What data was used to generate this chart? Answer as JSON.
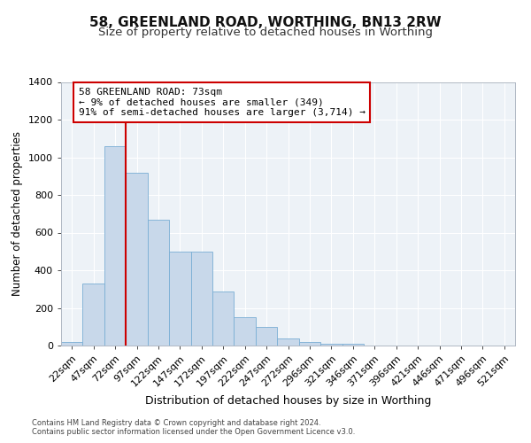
{
  "title": "58, GREENLAND ROAD, WORTHING, BN13 2RW",
  "subtitle": "Size of property relative to detached houses in Worthing",
  "xlabel": "Distribution of detached houses by size in Worthing",
  "ylabel": "Number of detached properties",
  "categories": [
    "22sqm",
    "47sqm",
    "72sqm",
    "97sqm",
    "122sqm",
    "147sqm",
    "172sqm",
    "197sqm",
    "222sqm",
    "247sqm",
    "272sqm",
    "296sqm",
    "321sqm",
    "346sqm",
    "371sqm",
    "396sqm",
    "421sqm",
    "446sqm",
    "471sqm",
    "496sqm",
    "521sqm"
  ],
  "bar_values": [
    20,
    330,
    1060,
    920,
    670,
    500,
    500,
    285,
    150,
    100,
    40,
    20,
    10,
    10,
    0,
    0,
    0,
    0,
    0,
    0,
    0
  ],
  "bar_color": "#c8d8ea",
  "bar_edge_color": "#7aaed4",
  "annotation_box_text": "58 GREENLAND ROAD: 73sqm\n← 9% of detached houses are smaller (349)\n91% of semi-detached houses are larger (3,714) →",
  "annotation_box_color": "#ffffff",
  "annotation_box_edge": "#cc0000",
  "vline_color": "#cc0000",
  "plot_bg_color": "#edf2f7",
  "ylim": [
    0,
    1400
  ],
  "yticks": [
    0,
    200,
    400,
    600,
    800,
    1000,
    1200,
    1400
  ],
  "vline_index": 2,
  "footer_text": "Contains HM Land Registry data © Crown copyright and database right 2024.\nContains public sector information licensed under the Open Government Licence v3.0.",
  "title_fontsize": 11,
  "subtitle_fontsize": 9.5,
  "xlabel_fontsize": 9,
  "ylabel_fontsize": 8.5,
  "tick_fontsize": 8,
  "annot_fontsize": 8
}
